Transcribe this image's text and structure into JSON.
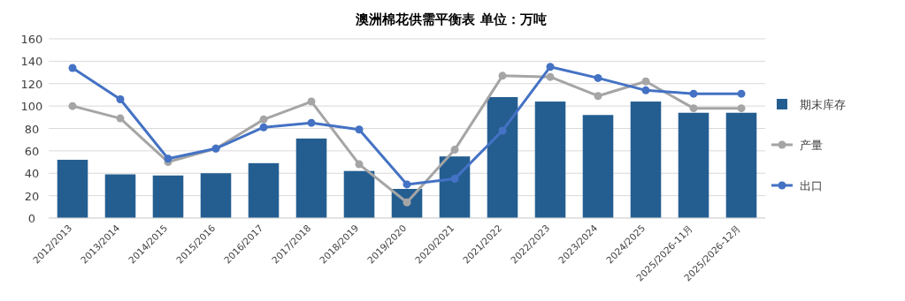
{
  "chart_data": {
    "type": "bar",
    "title": "澳洲棉花供需平衡表  单位：万吨",
    "categories": [
      "2012/2013",
      "2013/2014",
      "2014/2015",
      "2015/2016",
      "2016/2017",
      "2017/2018",
      "2018/2019",
      "2019/2020",
      "2020/2021",
      "2021/2022",
      "2022/2023",
      "2023/2024",
      "2024/2025",
      "2025/2026-11月",
      "2025/2026-12月"
    ],
    "series": [
      {
        "name": "期末库存",
        "color": "#245e91",
        "values": [
          52,
          39,
          38,
          40,
          49,
          71,
          42,
          26,
          55,
          108,
          104,
          92,
          104,
          94,
          94
        ]
      },
      {
        "name": "产量",
        "type": "line",
        "color": "#a5a5a5",
        "marker": "circle",
        "values": [
          100,
          89,
          50,
          62,
          88,
          104,
          48,
          14,
          61,
          127,
          126,
          109,
          122,
          98,
          98
        ]
      },
      {
        "name": "出口",
        "type": "line",
        "color": "#4472c4",
        "marker": "circle",
        "values": [
          134,
          106,
          53,
          62,
          81,
          85,
          79,
          30,
          35,
          78,
          135,
          125,
          114,
          111,
          111
        ]
      }
    ],
    "ylim": [
      0,
      160
    ],
    "yticks": [
      0,
      20,
      40,
      60,
      80,
      100,
      120,
      140,
      160
    ],
    "grid": "y",
    "legend": "right"
  }
}
